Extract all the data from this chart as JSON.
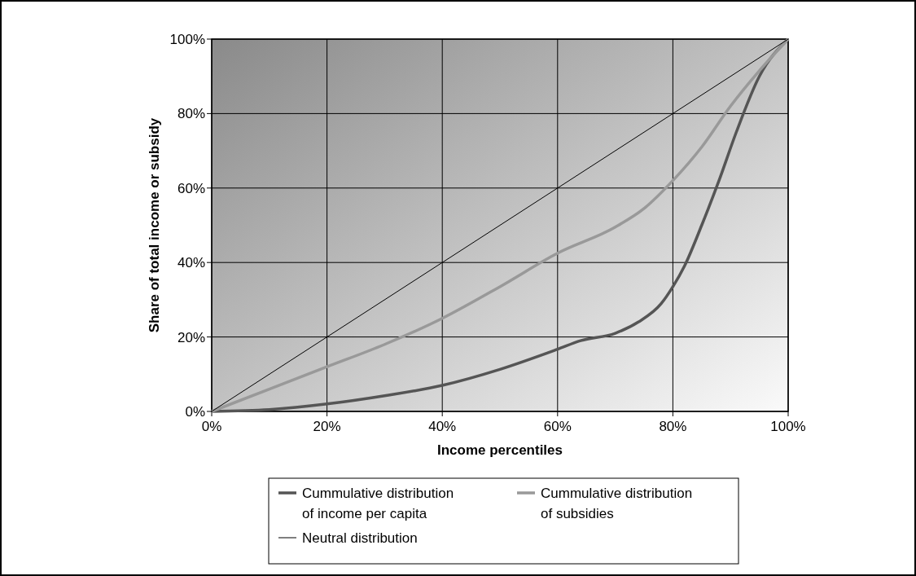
{
  "chart_data": {
    "type": "line",
    "xlabel": "Income percentiles",
    "ylabel": "Share of total income or subsidy",
    "xlim": [
      0,
      100
    ],
    "ylim": [
      0,
      100
    ],
    "xticks": [
      {
        "value": 0,
        "label": "0%"
      },
      {
        "value": 20,
        "label": "20%"
      },
      {
        "value": 40,
        "label": "40%"
      },
      {
        "value": 60,
        "label": "60%"
      },
      {
        "value": 80,
        "label": "80%"
      },
      {
        "value": 100,
        "label": "100%"
      }
    ],
    "yticks": [
      {
        "value": 0,
        "label": "0%"
      },
      {
        "value": 20,
        "label": "20%"
      },
      {
        "value": 40,
        "label": "40%"
      },
      {
        "value": 60,
        "label": "60%"
      },
      {
        "value": 80,
        "label": "80%"
      },
      {
        "value": 100,
        "label": "100%"
      }
    ],
    "grid": true,
    "legend": "bottom",
    "marker": "none",
    "series": [
      {
        "name": "Cummulative distribution of income per capita",
        "color": "#555555",
        "x": [
          0,
          10,
          20,
          30,
          40,
          50,
          60,
          64,
          70,
          74,
          78,
          80,
          82,
          85,
          88,
          91,
          95,
          100
        ],
        "values": [
          0,
          0.5,
          2,
          4.2,
          7,
          11.3,
          16.7,
          19,
          21,
          24,
          29,
          33.5,
          39,
          50,
          62,
          75,
          90,
          100
        ]
      },
      {
        "name": "Cummulative distribution of subsidies",
        "color": "#999999",
        "x": [
          0,
          10,
          20,
          30,
          40,
          50,
          60,
          70,
          75,
          80,
          85,
          90,
          95,
          100
        ],
        "values": [
          0,
          6,
          12,
          18,
          25,
          33.5,
          42.5,
          49.5,
          54.5,
          62,
          71,
          82,
          91.5,
          100
        ]
      },
      {
        "name": "Neutral distribution",
        "color": "#000000",
        "x": [
          0,
          100
        ],
        "values": [
          0,
          100
        ]
      }
    ]
  }
}
